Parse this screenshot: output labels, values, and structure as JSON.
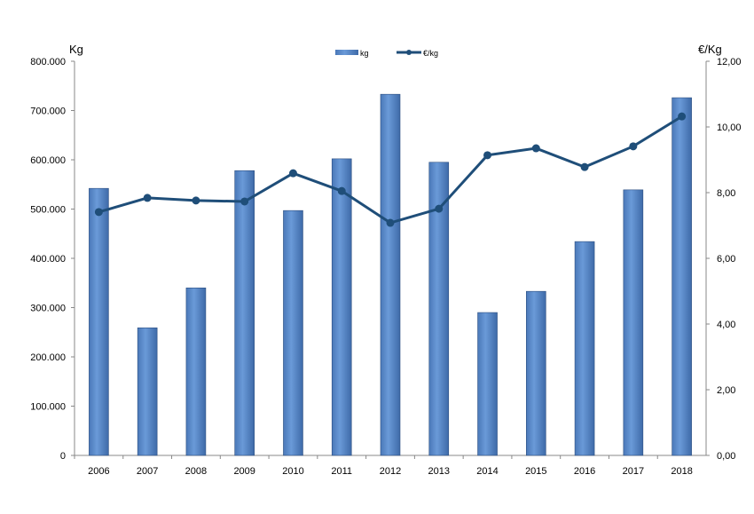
{
  "chart_data": {
    "type": "bar",
    "title": "",
    "categories": [
      "2006",
      "2007",
      "2008",
      "2009",
      "2010",
      "2011",
      "2012",
      "2013",
      "2014",
      "2015",
      "2016",
      "2017",
      "2018"
    ],
    "series": [
      {
        "name": "kg",
        "type": "bar",
        "axis": "left",
        "color": "#5b8bd0",
        "values": [
          542000,
          259000,
          340000,
          578000,
          497000,
          602000,
          733000,
          595000,
          290000,
          333000,
          434000,
          539000,
          726000
        ]
      },
      {
        "name": "€/kg",
        "type": "line",
        "axis": "right",
        "color": "#1f4e79",
        "values": [
          7.41,
          7.84,
          7.76,
          7.73,
          8.59,
          8.05,
          7.08,
          7.51,
          9.14,
          9.35,
          8.78,
          9.41,
          10.32
        ]
      }
    ],
    "ylabel": "Kg",
    "y2label": "€/Kg",
    "ylim": [
      0,
      800000
    ],
    "y2lim": [
      0,
      12
    ],
    "yticks": [
      "0",
      "100.000",
      "200.000",
      "300.000",
      "400.000",
      "500.000",
      "600.000",
      "700.000",
      "800.000"
    ],
    "y2ticks": [
      "0,00",
      "2,00",
      "4,00",
      "6,00",
      "8,00",
      "10,00",
      "12,00"
    ],
    "legend": "top-center",
    "grid": false
  }
}
